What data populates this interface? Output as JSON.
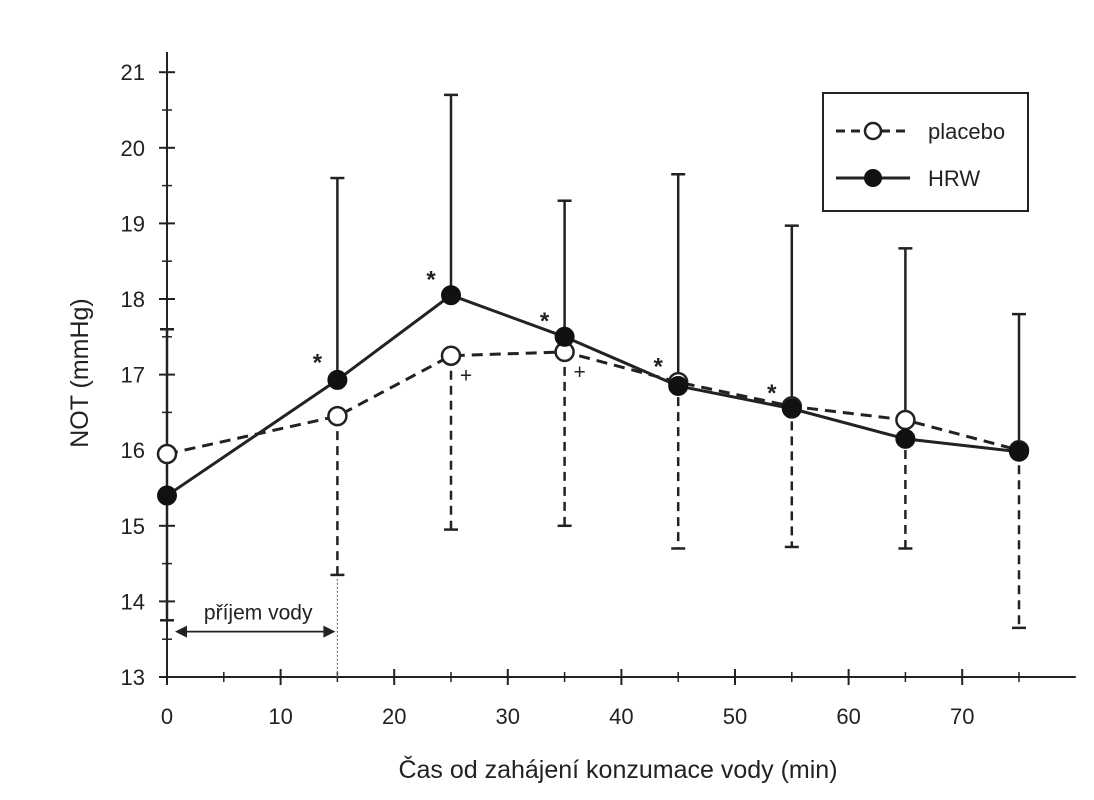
{
  "chart_data": {
    "type": "line",
    "title": "",
    "xlabel": "Čas od zahájení konzumace vody (min)",
    "ylabel": "NOT (mmHg)",
    "xlim": [
      0,
      80
    ],
    "ylim": [
      13,
      21.5
    ],
    "x_ticks": [
      0,
      10,
      20,
      30,
      40,
      50,
      60,
      70
    ],
    "y_ticks": [
      13,
      14,
      15,
      16,
      17,
      18,
      19,
      20,
      21
    ],
    "grid": false,
    "legend_position": "top-right",
    "x": [
      0,
      15,
      25,
      35,
      45,
      55,
      65,
      75
    ],
    "series": [
      {
        "name": "placebo",
        "style": "dashed",
        "marker": "open-circle",
        "values": [
          15.95,
          16.45,
          17.25,
          17.3,
          16.9,
          16.58,
          16.4,
          16.0
        ],
        "error_lower": [
          null,
          14.35,
          14.95,
          15.0,
          14.7,
          14.72,
          14.7,
          13.65
        ]
      },
      {
        "name": "HRW",
        "style": "solid",
        "marker": "filled-circle",
        "values": [
          15.4,
          16.93,
          18.05,
          17.5,
          16.85,
          16.55,
          16.15,
          15.98
        ],
        "error_upper": [
          17.6,
          19.6,
          20.7,
          19.3,
          19.65,
          18.97,
          18.67,
          17.8
        ],
        "error_lower": [
          13.75,
          null,
          null,
          null,
          null,
          null,
          null,
          null
        ]
      }
    ],
    "annotations": {
      "interval_label": "příjem vody",
      "interval_range": [
        0,
        15
      ],
      "stars": [
        {
          "text": "*",
          "x": 15,
          "y": 17.0
        },
        {
          "text": "*",
          "x": 25,
          "y": 18.1
        },
        {
          "text": "*",
          "x": 35,
          "y": 17.55
        },
        {
          "text": "*",
          "x": 45,
          "y": 16.95
        },
        {
          "text": "*",
          "x": 55,
          "y": 16.6
        }
      ],
      "plus": [
        {
          "text": "+",
          "x": 25,
          "y": 17.25
        },
        {
          "text": "+",
          "x": 35,
          "y": 17.3
        }
      ]
    }
  }
}
